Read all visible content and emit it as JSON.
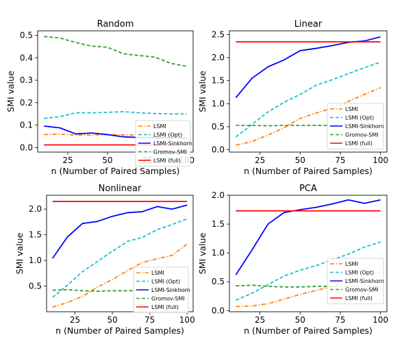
{
  "chart_data": [
    {
      "type": "line",
      "title": "Random",
      "xlabel": "n (Number of Paired Samples)",
      "ylabel": "SMI value",
      "x": [
        10,
        20,
        30,
        40,
        50,
        60,
        70,
        80,
        90,
        100
      ],
      "xlim": [
        6,
        104
      ],
      "ylim": [
        -0.02,
        0.52
      ],
      "xticks": [
        25,
        50,
        75,
        100
      ],
      "yticks": [
        0.0,
        0.1,
        0.2,
        0.3,
        0.4,
        0.5
      ],
      "legend_position": "center-right",
      "series": [
        {
          "name": "LSMI",
          "color": "#ff7f0e",
          "style": "dashdot",
          "values": [
            0.058,
            0.06,
            0.056,
            0.056,
            0.058,
            0.057,
            0.056,
            0.057,
            0.056,
            0.057
          ]
        },
        {
          "name": "LSMI (Opt)",
          "color": "#17becf",
          "style": "dashed",
          "values": [
            0.13,
            0.138,
            0.155,
            0.155,
            0.157,
            0.16,
            0.155,
            0.152,
            0.15,
            0.15
          ]
        },
        {
          "name": "LSMI-Sinkhorn",
          "color": "#0000ff",
          "style": "solid",
          "values": [
            0.096,
            0.088,
            0.061,
            0.065,
            0.058,
            0.048,
            0.045,
            0.044,
            0.044,
            0.043
          ]
        },
        {
          "name": "Gromov-SMI",
          "color": "#2ca02c",
          "style": "dashed",
          "values": [
            0.495,
            0.488,
            0.468,
            0.452,
            0.447,
            0.418,
            0.41,
            0.403,
            0.375,
            0.362
          ]
        },
        {
          "name": "LSMI (full)",
          "color": "#ff0000",
          "style": "solid",
          "values": [
            0.012,
            0.012,
            0.012,
            0.012,
            0.012,
            0.012,
            0.012,
            0.012,
            0.012,
            0.012
          ]
        }
      ]
    },
    {
      "type": "line",
      "title": "Linear",
      "xlabel": "n (Number of Paired Samples)",
      "ylabel": "SMI value",
      "x": [
        10,
        20,
        30,
        40,
        50,
        60,
        70,
        80,
        90,
        100
      ],
      "xlim": [
        6,
        104
      ],
      "ylim": [
        -0.05,
        2.58
      ],
      "xticks": [
        25,
        50,
        75,
        100
      ],
      "yticks": [
        0.0,
        0.5,
        1.0,
        1.5,
        2.0,
        2.5
      ],
      "legend_position": "lower-right",
      "series": [
        {
          "name": "LSMI",
          "color": "#ff7f0e",
          "style": "dashdot",
          "values": [
            0.1,
            0.18,
            0.32,
            0.48,
            0.68,
            0.8,
            0.9,
            1.05,
            1.2,
            1.35
          ]
        },
        {
          "name": "LSMI (Opt)",
          "color": "#17becf",
          "style": "dashed",
          "values": [
            0.28,
            0.55,
            0.82,
            1.03,
            1.2,
            1.4,
            1.52,
            1.65,
            1.78,
            1.9
          ]
        },
        {
          "name": "LSMI-Sinkhorn",
          "color": "#0000ff",
          "style": "solid",
          "values": [
            1.13,
            1.55,
            1.8,
            1.95,
            2.15,
            2.2,
            2.26,
            2.33,
            2.36,
            2.45
          ]
        },
        {
          "name": "Gromov-SMI",
          "color": "#2ca02c",
          "style": "dashed",
          "values": [
            0.53,
            0.53,
            0.52,
            0.53,
            0.53,
            0.53,
            0.53,
            0.53,
            0.53,
            0.53
          ]
        },
        {
          "name": "LSMI (full)",
          "color": "#ff0000",
          "style": "solid",
          "values": [
            2.34,
            2.34,
            2.34,
            2.34,
            2.34,
            2.34,
            2.34,
            2.34,
            2.34,
            2.34
          ]
        }
      ]
    },
    {
      "type": "line",
      "title": "Nonlinear",
      "xlabel": "n (Number of Paired Samples)",
      "ylabel": "SMI value",
      "x": [
        10,
        20,
        30,
        40,
        50,
        60,
        70,
        80,
        90,
        100
      ],
      "xlim": [
        6,
        104
      ],
      "ylim": [
        0.0,
        2.27
      ],
      "xticks": [
        25,
        50,
        75,
        100
      ],
      "yticks": [
        0.5,
        1.0,
        1.5,
        2.0
      ],
      "legend_position": "lower-right",
      "series": [
        {
          "name": "LSMI",
          "color": "#ff7f0e",
          "style": "dashdot",
          "values": [
            0.09,
            0.18,
            0.3,
            0.48,
            0.63,
            0.8,
            0.96,
            1.03,
            1.1,
            1.32
          ]
        },
        {
          "name": "LSMI (Opt)",
          "color": "#17becf",
          "style": "dashed",
          "values": [
            0.28,
            0.52,
            0.78,
            0.98,
            1.18,
            1.37,
            1.45,
            1.6,
            1.7,
            1.81
          ]
        },
        {
          "name": "LSMI-Sinkhorn",
          "color": "#0000ff",
          "style": "solid",
          "values": [
            1.04,
            1.46,
            1.72,
            1.76,
            1.86,
            1.93,
            1.95,
            2.05,
            2.0,
            2.08
          ]
        },
        {
          "name": "Gromov-SMI",
          "color": "#2ca02c",
          "style": "dashed",
          "values": [
            0.42,
            0.43,
            0.41,
            0.4,
            0.41,
            0.41,
            0.41,
            0.41,
            0.41,
            0.41
          ]
        },
        {
          "name": "LSMI (full)",
          "color": "#ff0000",
          "style": "solid",
          "values": [
            2.15,
            2.15,
            2.15,
            2.15,
            2.15,
            2.15,
            2.15,
            2.15,
            2.15,
            2.15
          ]
        }
      ]
    },
    {
      "type": "line",
      "title": "PCA",
      "xlabel": "n (Number of Paired Samples)",
      "ylabel": "SMI value",
      "x": [
        10,
        20,
        30,
        40,
        50,
        60,
        70,
        80,
        90,
        100
      ],
      "xlim": [
        6,
        104
      ],
      "ylim": [
        -0.02,
        2.0
      ],
      "xticks": [
        25,
        50,
        75,
        100
      ],
      "yticks": [
        0.0,
        0.5,
        1.0,
        1.5,
        2.0
      ],
      "legend_position": "lower-right",
      "series": [
        {
          "name": "LSMI",
          "color": "#ff7f0e",
          "style": "dashdot",
          "values": [
            0.07,
            0.08,
            0.12,
            0.2,
            0.28,
            0.35,
            0.42,
            0.5,
            0.58,
            0.68
          ]
        },
        {
          "name": "LSMI (Opt)",
          "color": "#17becf",
          "style": "dashed",
          "values": [
            0.18,
            0.3,
            0.45,
            0.6,
            0.7,
            0.78,
            0.88,
            0.98,
            1.1,
            1.19
          ]
        },
        {
          "name": "LSMI-Sinkhorn",
          "color": "#0000ff",
          "style": "solid",
          "values": [
            0.62,
            1.05,
            1.5,
            1.7,
            1.75,
            1.79,
            1.85,
            1.92,
            1.86,
            1.92
          ]
        },
        {
          "name": "Gromov-SMI",
          "color": "#2ca02c",
          "style": "dashed",
          "values": [
            0.43,
            0.44,
            0.42,
            0.41,
            0.41,
            0.42,
            0.42,
            0.42,
            0.42,
            0.42
          ]
        },
        {
          "name": "LSMI (full)",
          "color": "#ff0000",
          "style": "solid",
          "values": [
            1.73,
            1.73,
            1.73,
            1.73,
            1.73,
            1.73,
            1.73,
            1.73,
            1.73,
            1.73
          ]
        }
      ]
    }
  ]
}
